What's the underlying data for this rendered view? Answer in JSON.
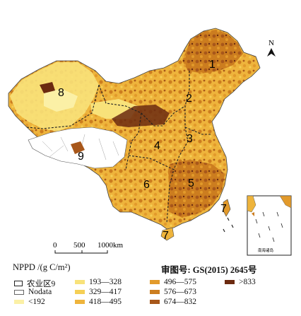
{
  "map": {
    "north_label": "N",
    "zone_labels": [
      "1",
      "2",
      "3",
      "4",
      "5",
      "6",
      "7",
      "7",
      "8",
      "9"
    ],
    "inset_label": "南海诸岛",
    "scale_ticks": [
      "0",
      "500",
      "1000km"
    ]
  },
  "legend": {
    "title": "NPPD /(g C/m²)",
    "review_number": "审图号: GS(2015) 2645号",
    "items": [
      {
        "label": "农业区9",
        "color": "#ffffff"
      },
      {
        "label": "Nodata",
        "color": "#ffffff"
      },
      {
        "label": "<192",
        "color": "#fbf0a6"
      },
      {
        "label": "193—328",
        "color": "#f8e27a"
      },
      {
        "label": "329—417",
        "color": "#f5cf55"
      },
      {
        "label": "418—495",
        "color": "#eeb43c"
      },
      {
        "label": "496—575",
        "color": "#e29a2b"
      },
      {
        "label": "576—673",
        "color": "#cc7d1f"
      },
      {
        "label": "674—832",
        "color": "#a8571a"
      },
      {
        "label": ">833",
        "color": "#6b2a10"
      }
    ]
  }
}
